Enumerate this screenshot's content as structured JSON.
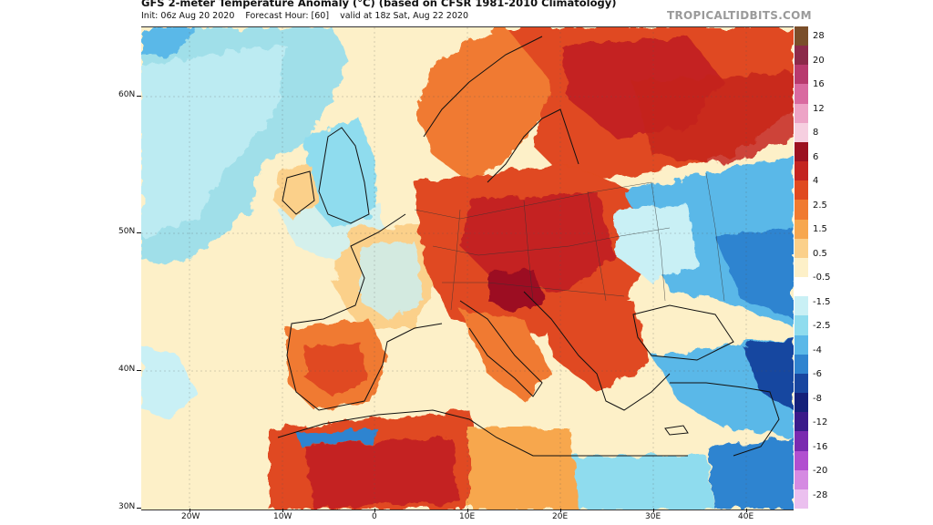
{
  "header": {
    "title": "GFS 2-meter Temperature Anomaly (°C) (based on CFSR 1981-2010 Climatology)",
    "init": "Init: 06z Aug 20 2020",
    "forecast_hour": "Forecast Hour: [60]",
    "valid": "valid at 18z Sat, Aug 22 2020",
    "brand": "TROPICALTIDBITS.COM"
  },
  "map": {
    "lat_labels": [
      "60N",
      "50N",
      "40N",
      "30N"
    ],
    "lon_labels": [
      "20W",
      "10W",
      "0",
      "10E",
      "20E",
      "30E",
      "40E"
    ]
  },
  "colorbar": {
    "labels": [
      "28",
      "20",
      "16",
      "12",
      "8",
      "6",
      "4",
      "2.5",
      "1.5",
      "0.5",
      "-0.5",
      "-1.5",
      "-2.5",
      "-4",
      "-6",
      "-8",
      "-12",
      "-16",
      "-20",
      "-28"
    ],
    "colors": [
      "#7a4e2a",
      "#8c2a4a",
      "#b83a6e",
      "#d96aa0",
      "#eda3c6",
      "#f6cfe0",
      "#9c1020",
      "#c42420",
      "#e04a20",
      "#f07a30",
      "#f7a74e",
      "#fbd08a",
      "#fdf0c8",
      "#ffffff",
      "#c9f0f5",
      "#8fdcee",
      "#5ab8e8",
      "#2f84d0",
      "#1846a0",
      "#14207a",
      "#3a1a8a",
      "#7a2ab0",
      "#b14fd0",
      "#d58ae2",
      "#ebc0ef"
    ]
  }
}
